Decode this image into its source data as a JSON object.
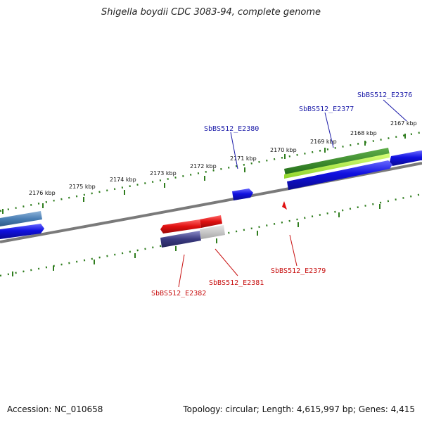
{
  "title": "Shigella boydii CDC 3083-94, complete genome",
  "accession": "Accession: NC_010658",
  "summary": "Topology: circular; Length: 4,615,997 bp; Genes: 4,415",
  "colors": {
    "backbone": "#7a7a7a",
    "tick": "#2f7d1e",
    "forward_gene": "#1010e0",
    "forward_highlight": "#2e7d22",
    "forward_light": "#9be63a",
    "steelblue_gene": "#4a7fb5",
    "reverse_gene": "#e01010",
    "reverse_navy": "#3a3a80",
    "reverse_grey": "#b8b8b8",
    "fwd_label": "#1a1aa8",
    "rev_label": "#c81010"
  },
  "scale_labels": [
    "2167 kbp",
    "2168 kbp",
    "2169 kbp",
    "2170 kbp",
    "2171 kbp",
    "2172 kbp",
    "2173 kbp",
    "2174 kbp",
    "2175 kbp",
    "2176 kbp"
  ],
  "forward_gene_labels": [
    "SbBS512_E2376",
    "SbBS512_E2377",
    "SbBS512_E2380"
  ],
  "reverse_gene_labels": [
    "SbBS512_E2379",
    "SbBS512_E2381",
    "SbBS512_E2382"
  ]
}
